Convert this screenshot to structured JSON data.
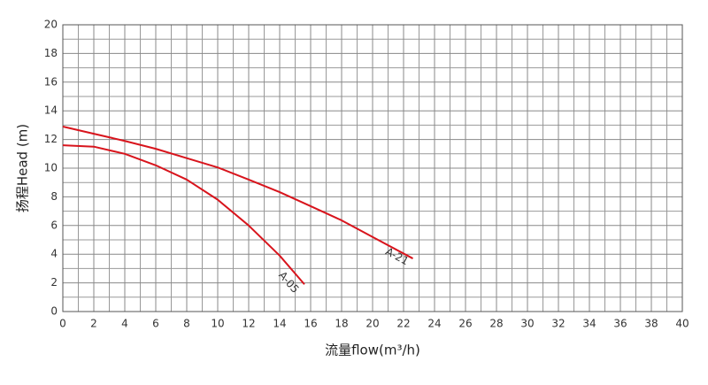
{
  "chart_data": {
    "type": "line",
    "xlabel": "流量flow(m³/h)",
    "ylabel": "扬程Head (m)",
    "xlim": [
      0,
      40
    ],
    "ylim": [
      0,
      20
    ],
    "xticks": [
      0,
      2,
      4,
      6,
      8,
      10,
      12,
      14,
      16,
      18,
      20,
      22,
      24,
      26,
      28,
      30,
      32,
      34,
      36,
      38,
      40
    ],
    "yticks": [
      0,
      2,
      4,
      6,
      8,
      10,
      12,
      14,
      16,
      18,
      20
    ],
    "grid": true,
    "minor_grid": true,
    "series": [
      {
        "name": "A-21",
        "color": "#d8141c",
        "x": [
          0,
          2,
          4,
          6,
          8,
          10,
          12,
          14,
          16,
          18,
          20,
          22.6
        ],
        "values": [
          12.9,
          12.4,
          11.9,
          11.35,
          10.7,
          10.05,
          9.2,
          8.33,
          7.35,
          6.36,
          5.2,
          3.7
        ]
      },
      {
        "name": "A-05",
        "color": "#d8141c",
        "x": [
          0,
          2,
          4,
          6,
          8,
          10,
          12,
          14,
          15.6
        ],
        "values": [
          11.6,
          11.5,
          11.0,
          10.2,
          9.2,
          7.8,
          6.0,
          3.9,
          1.9
        ]
      }
    ]
  }
}
